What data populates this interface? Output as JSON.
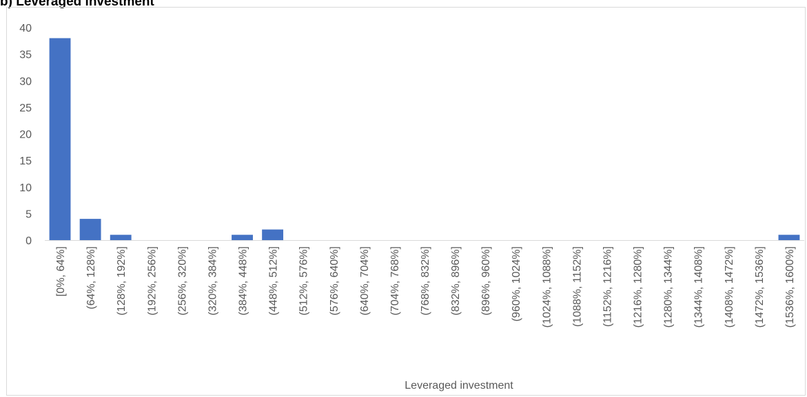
{
  "heading": "b)    Leveraged investment",
  "chart_data": {
    "type": "bar",
    "title": "",
    "xlabel": "Leveraged investment",
    "ylabel": "",
    "ylim": [
      0,
      40
    ],
    "yticks": [
      0,
      5,
      10,
      15,
      20,
      25,
      30,
      35,
      40
    ],
    "grid": false,
    "legend": "none",
    "bar_color": "#4472c4",
    "categories": [
      "[0%, 64%]",
      "(64%, 128%]",
      "(128%, 192%]",
      "(192%, 256%]",
      "(256%, 320%]",
      "(320%, 384%]",
      "(384%, 448%]",
      "(448%, 512%]",
      "(512%, 576%]",
      "(576%, 640%]",
      "(640%, 704%]",
      "(704%, 768%]",
      "(768%, 832%]",
      "(832%, 896%]",
      "(896%, 960%]",
      "(960%, 1024%]",
      "(1024%, 1088%]",
      "(1088%, 1152%]",
      "(1152%, 1216%]",
      "(1216%, 1280%]",
      "(1280%, 1344%]",
      "(1344%, 1408%]",
      "(1408%, 1472%]",
      "(1472%, 1536%]",
      "(1536%, 1600%]"
    ],
    "values": [
      38,
      4,
      1,
      0,
      0,
      0,
      1,
      2,
      0,
      0,
      0,
      0,
      0,
      0,
      0,
      0,
      0,
      0,
      0,
      0,
      0,
      0,
      0,
      0,
      1
    ]
  }
}
